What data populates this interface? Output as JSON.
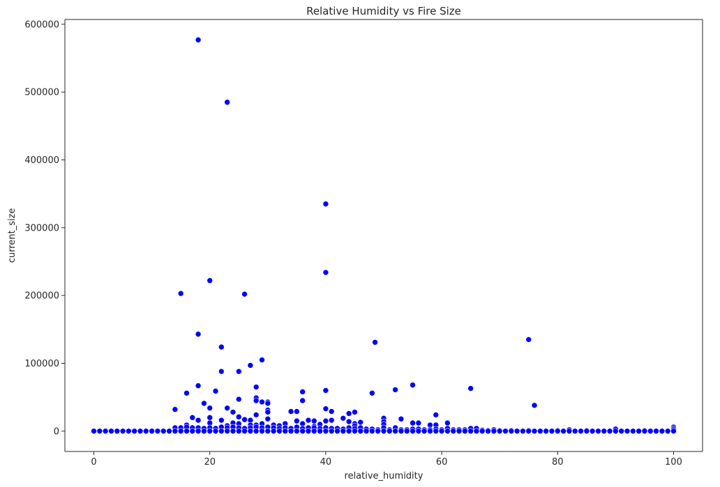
{
  "chart_data": {
    "type": "scatter",
    "title": "Relative Humidity vs Fire Size",
    "xlabel": "relative_humidity",
    "ylabel": "current_size",
    "xlim": [
      -5,
      105
    ],
    "ylim": [
      -30000,
      607000
    ],
    "xticks": [
      0,
      20,
      40,
      60,
      80,
      100
    ],
    "yticks": [
      0,
      100000,
      200000,
      300000,
      400000,
      500000,
      600000
    ],
    "xtick_labels": [
      "0",
      "20",
      "40",
      "60",
      "80",
      "100"
    ],
    "ytick_labels": [
      "0",
      "100000",
      "200000",
      "300000",
      "400000",
      "500000",
      "600000"
    ],
    "grid": false,
    "legend": "none",
    "marker_color": "#0000ff",
    "marker_edge_color": "#ffffff",
    "series": [
      {
        "points": [
          [
            18,
            577000
          ],
          [
            23,
            485000
          ],
          [
            40,
            335000
          ],
          [
            40,
            234000
          ],
          [
            20,
            222000
          ],
          [
            15,
            203000
          ],
          [
            26,
            202000
          ],
          [
            18,
            143000
          ],
          [
            75,
            135000
          ],
          [
            48.5,
            131000
          ],
          [
            22,
            124000
          ],
          [
            29,
            105000
          ],
          [
            27,
            97000
          ],
          [
            22,
            88000
          ],
          [
            25,
            88000
          ],
          [
            18,
            67000
          ],
          [
            28,
            65000
          ],
          [
            55,
            68000
          ],
          [
            65,
            63000
          ],
          [
            52,
            61000
          ],
          [
            21,
            59000
          ],
          [
            40,
            60000
          ],
          [
            36,
            58000
          ],
          [
            16,
            56000
          ],
          [
            48,
            56000
          ],
          [
            25,
            47000
          ],
          [
            28,
            49000
          ],
          [
            28,
            45000
          ],
          [
            29,
            43000
          ],
          [
            30,
            43000
          ],
          [
            30,
            41000
          ],
          [
            19,
            41000
          ],
          [
            36,
            45000
          ],
          [
            76,
            38000
          ],
          [
            20,
            34000
          ],
          [
            23,
            34000
          ],
          [
            40,
            33000
          ],
          [
            14,
            32000
          ],
          [
            24,
            28000
          ],
          [
            30,
            31000
          ],
          [
            30,
            28000
          ],
          [
            34,
            29000
          ],
          [
            35,
            29000
          ],
          [
            41,
            29000
          ],
          [
            44,
            26000
          ],
          [
            45,
            28000
          ],
          [
            28,
            24000
          ],
          [
            59,
            24000
          ],
          [
            17,
            20000
          ],
          [
            20,
            20000
          ],
          [
            25,
            21000
          ],
          [
            43,
            19000
          ],
          [
            50,
            19000
          ],
          [
            53,
            18000
          ],
          [
            18,
            16000
          ],
          [
            22,
            16000
          ],
          [
            26,
            17000
          ],
          [
            27,
            16000
          ],
          [
            30,
            18000
          ],
          [
            35,
            15000
          ],
          [
            37,
            16000
          ],
          [
            38,
            15000
          ],
          [
            41,
            16000
          ],
          [
            40,
            15000
          ],
          [
            44,
            14000
          ],
          [
            46,
            13000
          ],
          [
            50,
            14000
          ],
          [
            55,
            12000
          ],
          [
            56,
            12000
          ],
          [
            61,
            12000
          ],
          [
            24,
            12000
          ],
          [
            20,
            12000
          ],
          [
            25,
            11000
          ],
          [
            29,
            11000
          ],
          [
            31,
            9000
          ],
          [
            33,
            11000
          ],
          [
            36,
            11000
          ],
          [
            39,
            10000
          ],
          [
            45,
            11000
          ],
          [
            16,
            9000
          ],
          [
            23,
            8000
          ],
          [
            27,
            9000
          ],
          [
            28,
            9000
          ],
          [
            32,
            8000
          ],
          [
            38,
            7000
          ],
          [
            45,
            8000
          ],
          [
            50,
            10000
          ],
          [
            58,
            9000
          ],
          [
            59,
            9000
          ],
          [
            14,
            5000
          ],
          [
            15,
            5000
          ],
          [
            16,
            6000
          ],
          [
            17,
            5000
          ],
          [
            18,
            5000
          ],
          [
            19,
            4000
          ],
          [
            20,
            5000
          ],
          [
            21,
            4000
          ],
          [
            22,
            6000
          ],
          [
            23,
            5000
          ],
          [
            24,
            6000
          ],
          [
            25,
            5000
          ],
          [
            26,
            4000
          ],
          [
            27,
            5000
          ],
          [
            28,
            6000
          ],
          [
            29,
            5000
          ],
          [
            30,
            6000
          ],
          [
            31,
            5000
          ],
          [
            32,
            4000
          ],
          [
            33,
            5000
          ],
          [
            34,
            4000
          ],
          [
            35,
            6000
          ],
          [
            36,
            4000
          ],
          [
            37,
            5000
          ],
          [
            38,
            5000
          ],
          [
            39,
            4000
          ],
          [
            40,
            5000
          ],
          [
            41,
            4000
          ],
          [
            42,
            4000
          ],
          [
            43,
            3000
          ],
          [
            44,
            5000
          ],
          [
            45,
            4000
          ],
          [
            46,
            5000
          ],
          [
            47,
            3000
          ],
          [
            48,
            3000
          ],
          [
            49,
            2000
          ],
          [
            50,
            5000
          ],
          [
            51,
            2000
          ],
          [
            52,
            5000
          ],
          [
            53,
            2000
          ],
          [
            54,
            2000
          ],
          [
            55,
            3000
          ],
          [
            56,
            3000
          ],
          [
            57,
            2000
          ],
          [
            58,
            2000
          ],
          [
            59,
            3000
          ],
          [
            60,
            2000
          ],
          [
            61,
            4000
          ],
          [
            62,
            2000
          ],
          [
            63,
            2000
          ],
          [
            64,
            2000
          ],
          [
            65,
            4000
          ],
          [
            66,
            4000
          ],
          [
            67,
            1500
          ],
          [
            68,
            1000
          ],
          [
            69,
            2000
          ],
          [
            70,
            1000
          ],
          [
            72,
            1000
          ],
          [
            75,
            1000
          ],
          [
            80,
            1000
          ],
          [
            82,
            2000
          ],
          [
            85,
            1000
          ],
          [
            90,
            3000
          ],
          [
            95,
            1000
          ],
          [
            100,
            6000
          ],
          [
            100,
            4000
          ],
          [
            100,
            2000
          ],
          [
            0,
            0
          ],
          [
            1,
            0
          ],
          [
            2,
            0
          ],
          [
            3,
            0
          ],
          [
            4,
            0
          ],
          [
            5,
            0
          ],
          [
            6,
            0
          ],
          [
            7,
            0
          ],
          [
            8,
            0
          ],
          [
            9,
            0
          ],
          [
            10,
            0
          ],
          [
            11,
            0
          ],
          [
            12,
            0
          ],
          [
            13,
            0
          ],
          [
            14,
            0
          ],
          [
            15,
            0
          ],
          [
            16,
            0
          ],
          [
            17,
            0
          ],
          [
            18,
            0
          ],
          [
            19,
            0
          ],
          [
            20,
            0
          ],
          [
            21,
            0
          ],
          [
            22,
            0
          ],
          [
            23,
            0
          ],
          [
            24,
            0
          ],
          [
            25,
            0
          ],
          [
            26,
            0
          ],
          [
            27,
            0
          ],
          [
            28,
            0
          ],
          [
            29,
            0
          ],
          [
            30,
            0
          ],
          [
            31,
            0
          ],
          [
            32,
            0
          ],
          [
            33,
            0
          ],
          [
            34,
            0
          ],
          [
            35,
            0
          ],
          [
            36,
            0
          ],
          [
            37,
            0
          ],
          [
            38,
            0
          ],
          [
            39,
            0
          ],
          [
            40,
            0
          ],
          [
            41,
            0
          ],
          [
            42,
            0
          ],
          [
            43,
            0
          ],
          [
            44,
            0
          ],
          [
            45,
            0
          ],
          [
            46,
            0
          ],
          [
            47,
            0
          ],
          [
            48,
            0
          ],
          [
            49,
            0
          ],
          [
            50,
            0
          ],
          [
            51,
            0
          ],
          [
            52,
            0
          ],
          [
            53,
            0
          ],
          [
            54,
            0
          ],
          [
            55,
            0
          ],
          [
            56,
            0
          ],
          [
            57,
            0
          ],
          [
            58,
            0
          ],
          [
            59,
            0
          ],
          [
            60,
            0
          ],
          [
            61,
            0
          ],
          [
            62,
            0
          ],
          [
            63,
            0
          ],
          [
            64,
            0
          ],
          [
            65,
            0
          ],
          [
            66,
            0
          ],
          [
            67,
            0
          ],
          [
            68,
            0
          ],
          [
            69,
            0
          ],
          [
            70,
            0
          ],
          [
            71,
            0
          ],
          [
            72,
            0
          ],
          [
            73,
            0
          ],
          [
            74,
            0
          ],
          [
            75,
            0
          ],
          [
            76,
            0
          ],
          [
            77,
            0
          ],
          [
            78,
            0
          ],
          [
            79,
            0
          ],
          [
            80,
            0
          ],
          [
            81,
            0
          ],
          [
            82,
            0
          ],
          [
            83,
            0
          ],
          [
            84,
            0
          ],
          [
            85,
            0
          ],
          [
            86,
            0
          ],
          [
            87,
            0
          ],
          [
            88,
            0
          ],
          [
            89,
            0
          ],
          [
            90,
            0
          ],
          [
            91,
            0
          ],
          [
            92,
            0
          ],
          [
            93,
            0
          ],
          [
            94,
            0
          ],
          [
            95,
            0
          ],
          [
            96,
            0
          ],
          [
            97,
            0
          ],
          [
            98,
            0
          ],
          [
            99,
            0
          ],
          [
            100,
            0
          ]
        ]
      }
    ]
  }
}
